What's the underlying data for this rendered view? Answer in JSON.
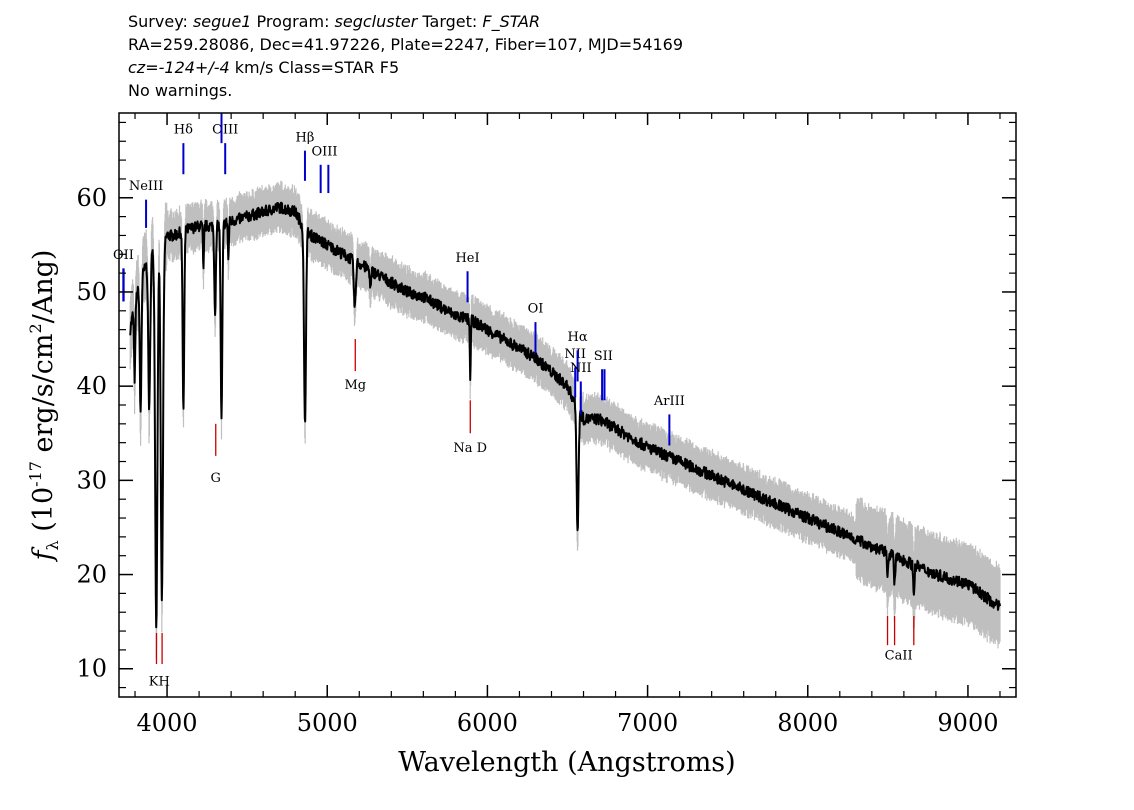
{
  "header": {
    "l1": {
      "a": "Survey: ",
      "b": "segue1",
      "c": " Program: ",
      "d": "segcluster",
      "e": " Target: ",
      "f": "F_STAR"
    },
    "l2": "RA=259.28086, Dec=41.97226, Plate=2247, Fiber=107, MJD=54169",
    "l3": {
      "a": "cz=",
      "b": "-124+/-4",
      "c": " km/s Class=STAR F5"
    },
    "l4": "No warnings."
  },
  "chart_data": {
    "type": "line",
    "xlabel": "Wavelength (Angstroms)",
    "ylabel": "f_λ (10^-17 erg/s/cm^2/Ang)",
    "xlim": [
      3700,
      9300
    ],
    "ylim": [
      7,
      69
    ],
    "xticks": [
      4000,
      5000,
      6000,
      7000,
      8000,
      9000
    ],
    "yticks": [
      10,
      20,
      30,
      40,
      50,
      60
    ],
    "continuum": [
      [
        3770,
        46
      ],
      [
        3800,
        49
      ],
      [
        3850,
        52
      ],
      [
        3900,
        54
      ],
      [
        3950,
        55
      ],
      [
        4000,
        56
      ],
      [
        4050,
        56
      ],
      [
        4100,
        56.5
      ],
      [
        4200,
        57
      ],
      [
        4300,
        57
      ],
      [
        4400,
        57.5
      ],
      [
        4500,
        58
      ],
      [
        4600,
        58.5
      ],
      [
        4700,
        59
      ],
      [
        4800,
        58.5
      ],
      [
        4850,
        57
      ],
      [
        4900,
        56
      ],
      [
        5000,
        55
      ],
      [
        5100,
        54
      ],
      [
        5200,
        53
      ],
      [
        5300,
        52
      ],
      [
        5400,
        51
      ],
      [
        5500,
        50
      ],
      [
        5600,
        49.5
      ],
      [
        5700,
        48.5
      ],
      [
        5800,
        47.5
      ],
      [
        5900,
        47
      ],
      [
        6000,
        46
      ],
      [
        6100,
        45
      ],
      [
        6200,
        44
      ],
      [
        6300,
        43
      ],
      [
        6400,
        41.5
      ],
      [
        6500,
        40
      ],
      [
        6540,
        38.5
      ],
      [
        6600,
        36.5
      ],
      [
        6700,
        36.5
      ],
      [
        6800,
        35.5
      ],
      [
        6900,
        34.5
      ],
      [
        7000,
        33.5
      ],
      [
        7200,
        32
      ],
      [
        7400,
        30.5
      ],
      [
        7600,
        29
      ],
      [
        7800,
        27.5
      ],
      [
        8000,
        26
      ],
      [
        8200,
        24.5
      ],
      [
        8400,
        23
      ],
      [
        8600,
        21.5
      ],
      [
        8800,
        20
      ],
      [
        9000,
        19
      ],
      [
        9200,
        16.5
      ]
    ],
    "absorption_lines": [
      {
        "x": 3798,
        "depth": 8,
        "width": 4
      },
      {
        "x": 3835,
        "depth": 14,
        "width": 5
      },
      {
        "x": 3889,
        "depth": 16,
        "width": 6
      },
      {
        "x": 3933,
        "depth": 40,
        "width": 7
      },
      {
        "x": 3968,
        "depth": 38,
        "width": 7
      },
      {
        "x": 4102,
        "depth": 19,
        "width": 5
      },
      {
        "x": 4227,
        "depth": 5,
        "width": 3
      },
      {
        "x": 4300,
        "depth": 9,
        "width": 5
      },
      {
        "x": 4340,
        "depth": 21,
        "width": 5
      },
      {
        "x": 4383,
        "depth": 4,
        "width": 3
      },
      {
        "x": 4861,
        "depth": 21,
        "width": 6
      },
      {
        "x": 5172,
        "depth": 5,
        "width": 6
      },
      {
        "x": 5270,
        "depth": 2,
        "width": 4
      },
      {
        "x": 5893,
        "depth": 6,
        "width": 3
      },
      {
        "x": 6563,
        "depth": 13,
        "width": 6
      },
      {
        "x": 8498,
        "depth": 2,
        "width": 4
      },
      {
        "x": 8542,
        "depth": 3,
        "width": 4
      },
      {
        "x": 8662,
        "depth": 3,
        "width": 4
      }
    ],
    "line_markers": [
      {
        "label": "KH",
        "x": [
          3934,
          3969
        ],
        "type": "absorption",
        "y_bottom": 10.5,
        "y_top": 13.8,
        "label_y": 8.2
      },
      {
        "label": "G",
        "x": [
          4304
        ],
        "type": "absorption",
        "y_bottom": 32.6,
        "y_top": 36,
        "label_y": 29.8
      },
      {
        "label": "Mg",
        "x": [
          5175
        ],
        "type": "absorption",
        "y_bottom": 41.6,
        "y_top": 45,
        "label_y": 39.7
      },
      {
        "label": "Na D",
        "x": [
          5893
        ],
        "type": "absorption",
        "y_bottom": 35,
        "y_top": 38.5,
        "label_y": 33
      },
      {
        "label": "CaII",
        "x": [
          8498,
          8542,
          8662
        ],
        "type": "absorption",
        "y_bottom": 12.5,
        "y_top": 15.6,
        "label_y": 11
      },
      {
        "label": "NeIII",
        "x": [
          3869
        ],
        "type": "emission",
        "y_bottom": 56.8,
        "y_top": 59.8,
        "label_y": 60.8
      },
      {
        "label": "OII",
        "x": [
          3727,
          3729
        ],
        "type": "emission",
        "y_bottom": 49,
        "y_top": 52.5,
        "label_y": 53.5
      },
      {
        "label": "Hδ",
        "x": [
          4102
        ],
        "type": "emission",
        "y_bottom": 62.5,
        "y_top": 65.8,
        "label_y": 66.8
      },
      {
        "label": "OIII",
        "x": [
          4363
        ],
        "type": "emission",
        "y_bottom": 62.5,
        "y_top": 65.8,
        "label_y": 66.8
      },
      {
        "label": "",
        "x": [
          4340
        ],
        "type": "emission",
        "y_bottom": 65.8,
        "y_top": 69,
        "label_y": 0
      },
      {
        "label": "Hβ",
        "x": [
          4861
        ],
        "type": "emission",
        "y_bottom": 61.8,
        "y_top": 65,
        "label_y": 66
      },
      {
        "label": "OIII",
        "x": [
          4959,
          5007
        ],
        "type": "emission",
        "y_bottom": 60.5,
        "y_top": 63.5,
        "label_y": 64.5
      },
      {
        "label": "HeI",
        "x": [
          5876
        ],
        "type": "emission",
        "y_bottom": 48.9,
        "y_top": 52.2,
        "label_y": 53.2
      },
      {
        "label": "OI",
        "x": [
          6300
        ],
        "type": "emission",
        "y_bottom": 43.5,
        "y_top": 46.8,
        "label_y": 47.8
      },
      {
        "label": "NII",
        "x": [
          6548
        ],
        "type": "emission",
        "y_bottom": 38.8,
        "y_top": 42,
        "label_y": 43
      },
      {
        "label": "Hα",
        "x": [
          6563
        ],
        "type": "emission",
        "y_bottom": 40.5,
        "y_top": 43.8,
        "label_y": 44.8
      },
      {
        "label": "NII",
        "x": [
          6583
        ],
        "type": "emission",
        "y_bottom": 37,
        "y_top": 40.5,
        "label_y": 41.5
      },
      {
        "label": "SII",
        "x": [
          6716,
          6731
        ],
        "type": "emission",
        "y_bottom": 38.5,
        "y_top": 41.8,
        "label_y": 42.8
      },
      {
        "label": "ArIII",
        "x": [
          7136
        ],
        "type": "emission",
        "y_bottom": 33.7,
        "y_top": 37,
        "label_y": 38
      }
    ],
    "colors": {
      "spectrum": "#000000",
      "error": "#bfbfbf",
      "absorption_marker": "#cc0000",
      "emission_marker": "#0000cc"
    }
  }
}
